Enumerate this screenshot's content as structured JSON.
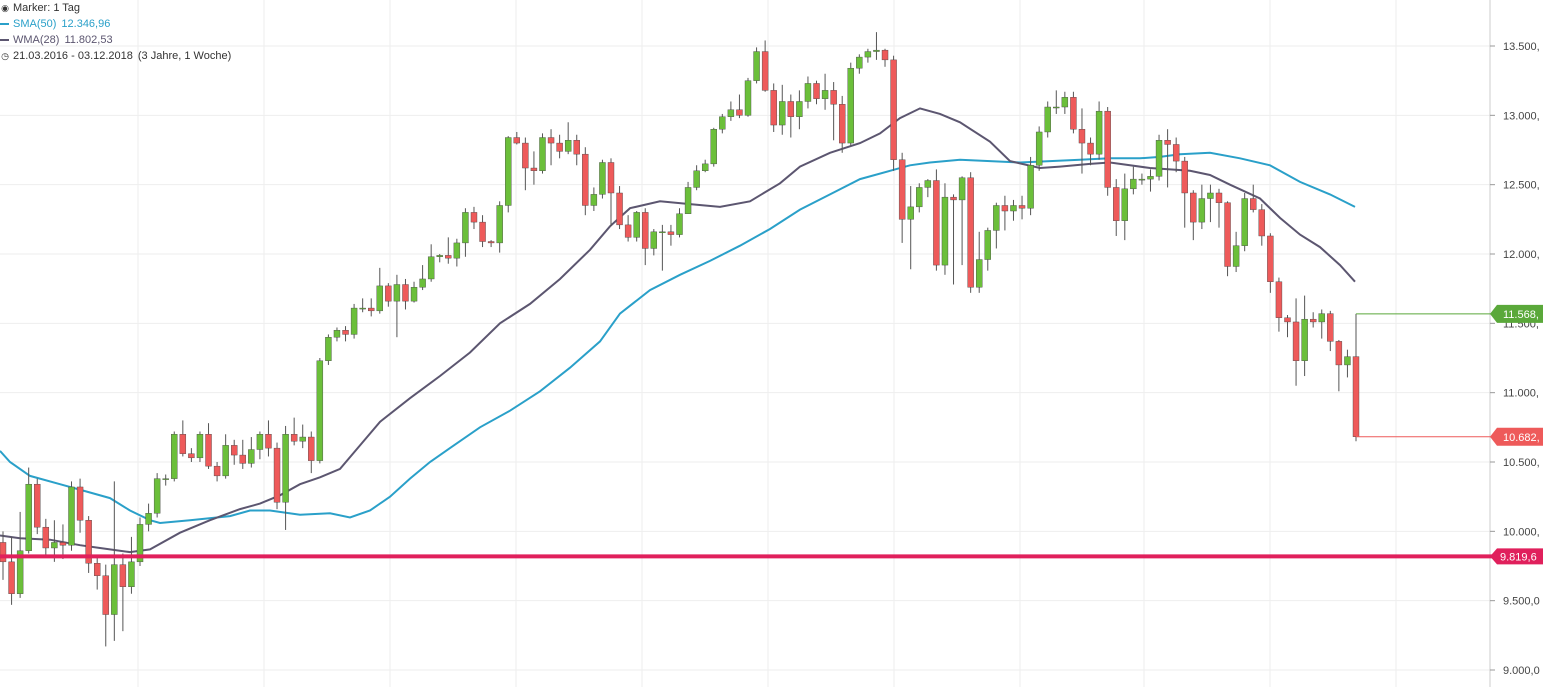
{
  "legend": {
    "marker_label": "Marker: 1 Tag",
    "sma_label": "SMA(50)",
    "sma_value": "12.346,96",
    "wma_label": "WMA(28)",
    "wma_value": "11.802,53",
    "range_label": "21.03.2016 - 03.12.2018",
    "range_duration": "(3 Jahre, 1 Woche)"
  },
  "colors": {
    "up": "#6bbf3a",
    "down": "#ee5a5a",
    "sma": "#2aa0c9",
    "wma": "#5c5670",
    "support": "#e0205c",
    "high_marker": "#5aa83a",
    "low_marker": "#ee5a5a",
    "grid": "#eeeeee"
  },
  "chart_data": {
    "type": "candlestick",
    "interval": "1 Tag",
    "ylim": [
      8950,
      13850
    ],
    "y_ticks": [
      {
        "value": 9000,
        "label": "9.000,0"
      },
      {
        "value": 9500,
        "label": "9.500,0"
      },
      {
        "value": 10000,
        "label": "10.000,"
      },
      {
        "value": 10500,
        "label": "10.500,"
      },
      {
        "value": 11000,
        "label": "11.000,"
      },
      {
        "value": 11500,
        "label": "11.500,"
      },
      {
        "value": 12000,
        "label": "12.000,"
      },
      {
        "value": 12500,
        "label": "12.500,"
      },
      {
        "value": 13000,
        "label": "13.000,"
      },
      {
        "value": 13500,
        "label": "13.500,"
      }
    ],
    "candles": [
      [
        9920,
        9780,
        10000,
        9650
      ],
      [
        9780,
        9550,
        9960,
        9470
      ],
      [
        9550,
        9860,
        10140,
        9520
      ],
      [
        9860,
        10340,
        10460,
        9840
      ],
      [
        10340,
        10030,
        10380,
        9980
      ],
      [
        10030,
        9880,
        10090,
        9820
      ],
      [
        9880,
        9920,
        10080,
        9780
      ],
      [
        9920,
        9900,
        10050,
        9800
      ],
      [
        9900,
        10320,
        10360,
        9860
      ],
      [
        10320,
        10080,
        10380,
        9990
      ],
      [
        10080,
        9770,
        10110,
        9700
      ],
      [
        9770,
        9680,
        9830,
        9580
      ],
      [
        9680,
        9400,
        9760,
        9170
      ],
      [
        9400,
        9760,
        10360,
        9210
      ],
      [
        9760,
        9600,
        9840,
        9280
      ],
      [
        9600,
        9780,
        9960,
        9550
      ],
      [
        9780,
        10050,
        10100,
        9750
      ],
      [
        10050,
        10130,
        10200,
        10000
      ],
      [
        10130,
        10380,
        10420,
        10100
      ],
      [
        10380,
        10380,
        10410,
        10330
      ],
      [
        10380,
        10700,
        10720,
        10360
      ],
      [
        10700,
        10560,
        10800,
        10540
      ],
      [
        10560,
        10530,
        10600,
        10500
      ],
      [
        10530,
        10700,
        10720,
        10500
      ],
      [
        10700,
        10470,
        10780,
        10450
      ],
      [
        10470,
        10400,
        10500,
        10360
      ],
      [
        10400,
        10620,
        10700,
        10380
      ],
      [
        10620,
        10550,
        10660,
        10480
      ],
      [
        10550,
        10490,
        10660,
        10450
      ],
      [
        10490,
        10590,
        10680,
        10460
      ],
      [
        10590,
        10700,
        10720,
        10520
      ],
      [
        10700,
        10600,
        10800,
        10540
      ],
      [
        10600,
        10210,
        10640,
        10160
      ],
      [
        10210,
        10700,
        10760,
        10010
      ],
      [
        10700,
        10650,
        10820,
        10620
      ],
      [
        10650,
        10680,
        10770,
        10600
      ],
      [
        10680,
        10510,
        10720,
        10420
      ],
      [
        10510,
        11230,
        11250,
        10490
      ],
      [
        11230,
        11400,
        11420,
        11200
      ],
      [
        11400,
        11450,
        11470,
        11370
      ],
      [
        11450,
        11420,
        11480,
        11370
      ],
      [
        11420,
        11610,
        11640,
        11390
      ],
      [
        11610,
        11610,
        11680,
        11580
      ],
      [
        11610,
        11590,
        11680,
        11550
      ],
      [
        11590,
        11770,
        11900,
        11570
      ],
      [
        11770,
        11660,
        11790,
        11620
      ],
      [
        11660,
        11780,
        11850,
        11400
      ],
      [
        11780,
        11660,
        11820,
        11600
      ],
      [
        11660,
        11760,
        11800,
        11650
      ],
      [
        11760,
        11820,
        11920,
        11740
      ],
      [
        11820,
        11980,
        12070,
        11800
      ],
      [
        11980,
        11990,
        12000,
        11940
      ],
      [
        11990,
        11970,
        12120,
        11930
      ],
      [
        11970,
        12080,
        12110,
        11910
      ],
      [
        12080,
        12300,
        12330,
        11980
      ],
      [
        12300,
        12230,
        12340,
        12180
      ],
      [
        12230,
        12090,
        12280,
        12050
      ],
      [
        12090,
        12080,
        12100,
        12050
      ],
      [
        12080,
        12350,
        12380,
        12010
      ],
      [
        12350,
        12840,
        12850,
        12300
      ],
      [
        12840,
        12800,
        12880,
        12790
      ],
      [
        12800,
        12620,
        12840,
        12460
      ],
      [
        12620,
        12600,
        12740,
        12500
      ],
      [
        12600,
        12840,
        12870,
        12580
      ],
      [
        12840,
        12800,
        12900,
        12640
      ],
      [
        12800,
        12740,
        12860,
        12690
      ],
      [
        12740,
        12820,
        12950,
        12720
      ],
      [
        12820,
        12720,
        12860,
        12640
      ],
      [
        12720,
        12350,
        12770,
        12280
      ],
      [
        12350,
        12430,
        12480,
        12310
      ],
      [
        12430,
        12660,
        12680,
        12400
      ],
      [
        12660,
        12440,
        12690,
        12200
      ],
      [
        12440,
        12210,
        12490,
        12180
      ],
      [
        12210,
        12120,
        12280,
        12090
      ],
      [
        12120,
        12300,
        12310,
        12090
      ],
      [
        12300,
        12040,
        12330,
        11920
      ],
      [
        12040,
        12160,
        12180,
        11990
      ],
      [
        12160,
        12160,
        12210,
        11880
      ],
      [
        12160,
        12140,
        12210,
        12060
      ],
      [
        12140,
        12290,
        12330,
        12120
      ],
      [
        12290,
        12480,
        12520,
        12290
      ],
      [
        12480,
        12600,
        12640,
        12460
      ],
      [
        12600,
        12650,
        12680,
        12590
      ],
      [
        12650,
        12900,
        12910,
        12630
      ],
      [
        12900,
        12990,
        13010,
        12870
      ],
      [
        12990,
        13040,
        13100,
        12960
      ],
      [
        13040,
        13000,
        13150,
        12980
      ],
      [
        13000,
        13250,
        13270,
        12990
      ],
      [
        13250,
        13460,
        13490,
        13230
      ],
      [
        13460,
        13180,
        13540,
        13170
      ],
      [
        13180,
        12930,
        13230,
        12880
      ],
      [
        12930,
        13100,
        13220,
        12860
      ],
      [
        13100,
        12990,
        13150,
        12840
      ],
      [
        12990,
        13100,
        13180,
        12900
      ],
      [
        13100,
        13230,
        13280,
        13050
      ],
      [
        13230,
        13120,
        13250,
        13080
      ],
      [
        13120,
        13180,
        13300,
        13040
      ],
      [
        13180,
        13080,
        13240,
        12820
      ],
      [
        13080,
        12800,
        13140,
        12730
      ],
      [
        12800,
        13340,
        13380,
        12780
      ],
      [
        13340,
        13420,
        13440,
        13300
      ],
      [
        13420,
        13460,
        13480,
        13380
      ],
      [
        13460,
        13470,
        13600,
        13400
      ],
      [
        13470,
        13400,
        13480,
        13350
      ],
      [
        13400,
        12680,
        13430,
        12600
      ],
      [
        12680,
        12250,
        12730,
        12080
      ],
      [
        12250,
        12340,
        12490,
        11890
      ],
      [
        12340,
        12480,
        12510,
        12300
      ],
      [
        12480,
        12530,
        12540,
        12410
      ],
      [
        12530,
        11920,
        12610,
        11880
      ],
      [
        11920,
        12410,
        12510,
        11850
      ],
      [
        12410,
        12390,
        12430,
        11780
      ],
      [
        12390,
        12550,
        12560,
        11920
      ],
      [
        12550,
        11760,
        12590,
        11720
      ],
      [
        11760,
        11960,
        12160,
        11720
      ],
      [
        11960,
        12170,
        12190,
        11880
      ],
      [
        12170,
        12350,
        12370,
        12040
      ],
      [
        12350,
        12310,
        12420,
        12170
      ],
      [
        12310,
        12350,
        12390,
        12240
      ],
      [
        12350,
        12330,
        12420,
        12250
      ],
      [
        12330,
        12640,
        12700,
        12280
      ],
      [
        12640,
        12880,
        12920,
        12600
      ],
      [
        12880,
        13060,
        13100,
        12840
      ],
      [
        13060,
        13060,
        13180,
        13010
      ],
      [
        13060,
        13130,
        13170,
        13010
      ],
      [
        13130,
        12900,
        13170,
        12870
      ],
      [
        12900,
        12800,
        13050,
        12580
      ],
      [
        12800,
        12720,
        12840,
        12640
      ],
      [
        12720,
        13030,
        13100,
        12680
      ],
      [
        13030,
        12480,
        13060,
        12420
      ],
      [
        12480,
        12240,
        12540,
        12130
      ],
      [
        12240,
        12470,
        12580,
        12100
      ],
      [
        12470,
        12540,
        12630,
        12430
      ],
      [
        12540,
        12540,
        12580,
        12500
      ],
      [
        12540,
        12560,
        12610,
        12450
      ],
      [
        12560,
        12820,
        12860,
        12530
      ],
      [
        12820,
        12790,
        12900,
        12480
      ],
      [
        12790,
        12670,
        12840,
        12590
      ],
      [
        12670,
        12440,
        12700,
        12190
      ],
      [
        12440,
        12230,
        12460,
        12100
      ],
      [
        12230,
        12400,
        12500,
        12180
      ],
      [
        12400,
        12440,
        12500,
        12230
      ],
      [
        12440,
        12370,
        12470,
        12190
      ],
      [
        12370,
        11910,
        12380,
        11840
      ],
      [
        11910,
        12060,
        12160,
        11870
      ],
      [
        12060,
        12400,
        12440,
        12020
      ],
      [
        12400,
        12320,
        12500,
        12300
      ],
      [
        12320,
        12130,
        12360,
        12060
      ],
      [
        12130,
        11800,
        12150,
        11720
      ],
      [
        11800,
        11540,
        11830,
        11440
      ],
      [
        11540,
        11510,
        11560,
        11400
      ],
      [
        11510,
        11230,
        11680,
        11050
      ],
      [
        11230,
        11530,
        11700,
        11120
      ],
      [
        11530,
        11510,
        11580,
        11470
      ],
      [
        11510,
        11570,
        11600,
        11390
      ],
      [
        11570,
        11370,
        11590,
        11300
      ],
      [
        11370,
        11200,
        11380,
        11010
      ],
      [
        11200,
        11260,
        11310,
        11110
      ],
      [
        11260,
        10682,
        11568,
        10650
      ]
    ],
    "sma50": [
      [
        0,
        10580
      ],
      [
        10,
        10500
      ],
      [
        30,
        10400
      ],
      [
        60,
        10340
      ],
      [
        90,
        10280
      ],
      [
        110,
        10240
      ],
      [
        130,
        10150
      ],
      [
        150,
        10080
      ],
      [
        160,
        10060
      ],
      [
        190,
        10080
      ],
      [
        230,
        10110
      ],
      [
        250,
        10150
      ],
      [
        270,
        10150
      ],
      [
        300,
        10120
      ],
      [
        330,
        10130
      ],
      [
        350,
        10100
      ],
      [
        370,
        10150
      ],
      [
        390,
        10250
      ],
      [
        410,
        10380
      ],
      [
        430,
        10500
      ],
      [
        450,
        10600
      ],
      [
        480,
        10750
      ],
      [
        510,
        10870
      ],
      [
        540,
        11010
      ],
      [
        570,
        11180
      ],
      [
        600,
        11370
      ],
      [
        620,
        11570
      ],
      [
        650,
        11740
      ],
      [
        680,
        11850
      ],
      [
        710,
        11950
      ],
      [
        740,
        12060
      ],
      [
        770,
        12180
      ],
      [
        800,
        12320
      ],
      [
        830,
        12430
      ],
      [
        860,
        12540
      ],
      [
        890,
        12600
      ],
      [
        910,
        12640
      ],
      [
        930,
        12660
      ],
      [
        960,
        12680
      ],
      [
        990,
        12670
      ],
      [
        1020,
        12660
      ],
      [
        1050,
        12670
      ],
      [
        1080,
        12680
      ],
      [
        1110,
        12690
      ],
      [
        1140,
        12690
      ],
      [
        1160,
        12700
      ],
      [
        1180,
        12720
      ],
      [
        1210,
        12730
      ],
      [
        1240,
        12690
      ],
      [
        1270,
        12640
      ],
      [
        1300,
        12520
      ],
      [
        1330,
        12430
      ],
      [
        1355,
        12340
      ]
    ],
    "wma28": [
      [
        0,
        9970
      ],
      [
        20,
        9950
      ],
      [
        50,
        9940
      ],
      [
        80,
        9900
      ],
      [
        100,
        9880
      ],
      [
        130,
        9850
      ],
      [
        150,
        9870
      ],
      [
        180,
        9990
      ],
      [
        210,
        10080
      ],
      [
        240,
        10160
      ],
      [
        260,
        10200
      ],
      [
        280,
        10260
      ],
      [
        300,
        10340
      ],
      [
        320,
        10390
      ],
      [
        340,
        10450
      ],
      [
        360,
        10620
      ],
      [
        380,
        10790
      ],
      [
        410,
        10960
      ],
      [
        440,
        11120
      ],
      [
        470,
        11290
      ],
      [
        500,
        11500
      ],
      [
        530,
        11640
      ],
      [
        560,
        11820
      ],
      [
        590,
        12030
      ],
      [
        610,
        12200
      ],
      [
        630,
        12330
      ],
      [
        660,
        12380
      ],
      [
        690,
        12360
      ],
      [
        720,
        12340
      ],
      [
        750,
        12380
      ],
      [
        780,
        12510
      ],
      [
        800,
        12630
      ],
      [
        830,
        12730
      ],
      [
        860,
        12800
      ],
      [
        880,
        12870
      ],
      [
        900,
        12980
      ],
      [
        920,
        13050
      ],
      [
        940,
        13010
      ],
      [
        960,
        12950
      ],
      [
        990,
        12810
      ],
      [
        1010,
        12670
      ],
      [
        1040,
        12620
      ],
      [
        1060,
        12630
      ],
      [
        1090,
        12650
      ],
      [
        1110,
        12660
      ],
      [
        1130,
        12640
      ],
      [
        1150,
        12620
      ],
      [
        1170,
        12610
      ],
      [
        1190,
        12600
      ],
      [
        1210,
        12570
      ],
      [
        1230,
        12500
      ],
      [
        1260,
        12400
      ],
      [
        1280,
        12260
      ],
      [
        1300,
        12140
      ],
      [
        1320,
        12050
      ],
      [
        1340,
        11920
      ],
      [
        1355,
        11800
      ]
    ],
    "support_level": {
      "value": 9819.6,
      "label": "9.819,6"
    },
    "high_marker": {
      "value": 11568,
      "label": "11.568,"
    },
    "low_marker": {
      "value": 10682,
      "label": "10.682,"
    }
  }
}
